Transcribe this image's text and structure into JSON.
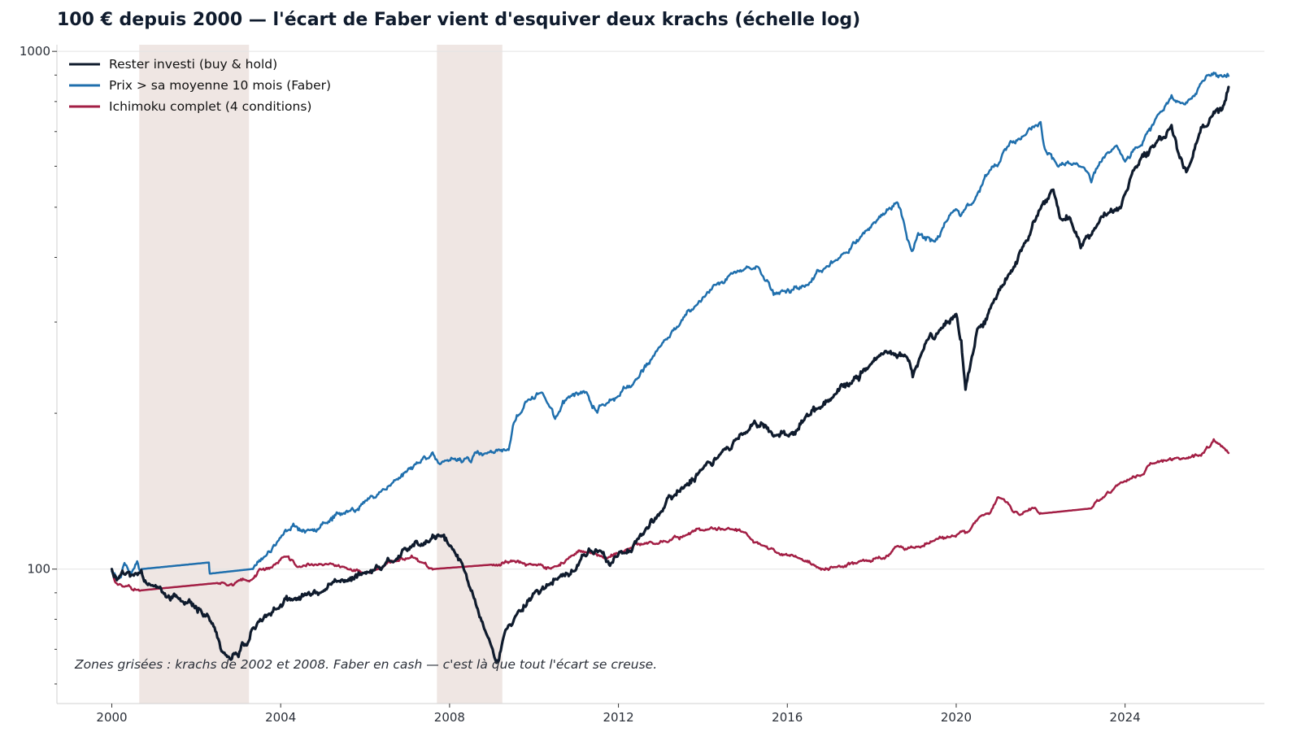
{
  "chart_data": {
    "type": "line",
    "title": "100 € depuis 2000 — l'écart de Faber vient d'esquiver deux krachs (échelle log)",
    "xlabel": "",
    "ylabel": "",
    "y_scale": "log",
    "ylim": [
      55,
      1030
    ],
    "xlim": [
      1998.7,
      2027.3
    ],
    "x_ticks": [
      2000,
      2004,
      2008,
      2012,
      2016,
      2020,
      2024
    ],
    "x_tick_labels": [
      "2000",
      "2004",
      "2008",
      "2012",
      "2016",
      "2020",
      "2024"
    ],
    "y_ticks": [
      100,
      1000
    ],
    "y_tick_labels": [
      "100",
      "1000"
    ],
    "grid": "horizontal",
    "legend_position": "top-left",
    "shaded_regions": [
      [
        2000.65,
        2003.25
      ],
      [
        2007.7,
        2009.25
      ]
    ],
    "annotation": "Zones grisées : krachs de 2002 et 2008. Faber en cash — c'est là que tout l'écart se creuse.",
    "series": [
      {
        "name": "Rester investi (buy & hold)",
        "color": "#0f1b2d",
        "x": [
          2000,
          2000.1,
          2000.25,
          2000.5,
          2000.7,
          2000.9,
          2001.1,
          2001.3,
          2001.5,
          2001.7,
          2001.9,
          2002.1,
          2002.3,
          2002.5,
          2002.6,
          2002.8,
          2003.0,
          2003.2,
          2003.4,
          2003.7,
          2004.0,
          2004.3,
          2004.6,
          2005.0,
          2005.5,
          2006.0,
          2006.4,
          2006.7,
          2007.0,
          2007.4,
          2007.8,
          2008.0,
          2008.3,
          2008.6,
          2008.8,
          2009.0,
          2009.15,
          2009.3,
          2009.6,
          2010.0,
          2010.3,
          2010.6,
          2011.0,
          2011.3,
          2011.6,
          2011.8,
          2012.0,
          2012.5,
          2013.0,
          2013.5,
          2014.0,
          2014.5,
          2015.0,
          2015.4,
          2015.7,
          2016.1,
          2016.4,
          2016.8,
          2017.0,
          2017.5,
          2018.0,
          2018.4,
          2018.8,
          2018.97,
          2019.3,
          2019.6,
          2020.0,
          2020.12,
          2020.22,
          2020.5,
          2020.9,
          2021.3,
          2021.7,
          2022.0,
          2022.3,
          2022.5,
          2022.7,
          2022.95,
          2023.3,
          2023.6,
          2023.85,
          2024.0,
          2024.3,
          2024.7,
          2025.1,
          2025.25,
          2025.45,
          2025.8,
          2026.1,
          2026.3,
          2026.45
        ],
        "y": [
          100,
          96,
          99,
          97,
          99,
          94,
          92,
          88,
          89,
          86,
          85,
          84,
          81,
          74,
          69,
          67,
          68,
          71,
          77,
          82,
          85,
          87,
          89,
          91,
          95,
          98,
          100,
          104,
          109,
          112,
          116,
          111,
          102,
          87,
          78,
          71,
          66,
          75,
          82,
          90,
          93,
          96,
          100,
          109,
          108,
          101,
          107,
          116,
          129,
          143,
          157,
          170,
          183,
          192,
          181,
          183,
          195,
          205,
          212,
          228,
          251,
          262,
          258,
          236,
          275,
          291,
          311,
          275,
          223,
          290,
          330,
          375,
          432,
          498,
          540,
          472,
          478,
          418,
          455,
          489,
          498,
          530,
          603,
          657,
          720,
          640,
          585,
          712,
          762,
          768,
          850
        ]
      },
      {
        "name": "Prix > sa moyenne 10 mois (Faber)",
        "color": "#1f6fad",
        "x": [
          2000,
          2000.15,
          2000.3,
          2000.45,
          2000.6,
          2000.7,
          2002.3,
          2002.32,
          2003.3,
          2003.45,
          2003.7,
          2004.0,
          2004.3,
          2004.6,
          2005.0,
          2005.5,
          2006.0,
          2006.4,
          2006.8,
          2007.2,
          2007.6,
          2007.75,
          2009.4,
          2009.5,
          2009.8,
          2010.2,
          2010.5,
          2010.8,
          2011.2,
          2011.5,
          2011.6,
          2011.9,
          2012.3,
          2012.8,
          2013.3,
          2013.8,
          2014.3,
          2014.8,
          2015.3,
          2015.65,
          2015.7,
          2016.5,
          2016.8,
          2017.3,
          2017.8,
          2018.2,
          2018.6,
          2018.75,
          2018.95,
          2019.1,
          2019.5,
          2019.9,
          2020.1,
          2020.4,
          2020.8,
          2021.2,
          2021.6,
          2022.0,
          2022.1,
          2022.4,
          2023.0,
          2023.2,
          2023.4,
          2023.8,
          2024.0,
          2024.4,
          2024.8,
          2025.1,
          2025.4,
          2025.8,
          2026.1,
          2026.4,
          2026.45
        ],
        "y": [
          99,
          96,
          103,
          98,
          104,
          100,
          103,
          98,
          100,
          103,
          108,
          115,
          122,
          118,
          123,
          128,
          135,
          142,
          150,
          160,
          168,
          160,
          170,
          190,
          210,
          220,
          195,
          215,
          220,
          200,
          208,
          212,
          225,
          255,
          290,
          320,
          355,
          375,
          385,
          345,
          340,
          355,
          375,
          405,
          445,
          480,
          510,
          470,
          410,
          445,
          430,
          490,
          480,
          510,
          590,
          650,
          690,
          730,
          650,
          600,
          600,
          560,
          610,
          660,
          610,
          660,
          760,
          820,
          790,
          870,
          910,
          895,
          895
        ]
      },
      {
        "name": "Ichimoku complet (4 conditions)",
        "color": "#a31f45",
        "x": [
          2000,
          2000.1,
          2000.4,
          2000.7,
          2002.5,
          2003.3,
          2003.5,
          2003.8,
          2004.1,
          2004.4,
          2004.8,
          2005.5,
          2006.0,
          2006.3,
          2006.8,
          2007.1,
          2007.6,
          2009.0,
          2009.5,
          2010.0,
          2010.4,
          2010.9,
          2011.3,
          2011.7,
          2012.1,
          2012.6,
          2013.0,
          2013.6,
          2014.0,
          2014.6,
          2015.0,
          2015.4,
          2015.8,
          2016.3,
          2016.8,
          2017.3,
          2017.8,
          2018.3,
          2018.6,
          2019.0,
          2019.5,
          2019.9,
          2020.3,
          2020.6,
          2020.8,
          2021.0,
          2021.5,
          2021.8,
          2022.0,
          2023.2,
          2023.5,
          2023.9,
          2024.4,
          2024.6,
          2025.0,
          2025.4,
          2025.8,
          2026.1,
          2026.45
        ],
        "y": [
          100,
          94,
          93,
          91,
          94,
          95,
          100,
          101,
          106,
          101,
          102,
          101,
          98,
          100,
          104,
          106,
          100,
          102,
          104,
          102,
          100,
          106,
          108,
          105,
          108,
          112,
          113,
          116,
          119,
          120,
          118,
          111,
          107,
          105,
          100,
          101,
          104,
          105,
          111,
          110,
          114,
          116,
          118,
          127,
          128,
          138,
          127,
          131,
          128,
          131,
          138,
          147,
          152,
          160,
          162,
          164,
          166,
          178,
          168
        ]
      }
    ]
  }
}
